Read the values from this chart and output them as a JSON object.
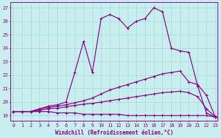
{
  "xlabel": "Windchill (Refroidissement éolien,°C)",
  "bg_color": "#c8eef0",
  "line_color": "#880088",
  "grid_color": "#aadddd",
  "x_ticks": [
    0,
    1,
    2,
    3,
    4,
    5,
    6,
    7,
    8,
    9,
    10,
    11,
    12,
    13,
    14,
    15,
    16,
    17,
    18,
    19,
    20,
    21,
    22,
    23
  ],
  "y_ticks": [
    19,
    20,
    21,
    22,
    23,
    24,
    25,
    26,
    27
  ],
  "ylim": [
    18.6,
    27.4
  ],
  "xlim": [
    -0.3,
    23.3
  ],
  "curve_flat_x": [
    0,
    1,
    2,
    3,
    4,
    5,
    6,
    7,
    8,
    9,
    10,
    11,
    12,
    13,
    14,
    15,
    16,
    17,
    18,
    19,
    20,
    21,
    22,
    23
  ],
  "curve_flat_y": [
    19.3,
    19.3,
    19.3,
    19.3,
    19.3,
    19.2,
    19.2,
    19.2,
    19.1,
    19.1,
    19.1,
    19.1,
    19.1,
    19.0,
    19.0,
    19.0,
    19.0,
    19.0,
    19.0,
    19.0,
    19.0,
    19.0,
    19.0,
    18.9
  ],
  "curve_slow_x": [
    0,
    1,
    2,
    3,
    4,
    5,
    6,
    7,
    8,
    9,
    10,
    11,
    12,
    13,
    14,
    15,
    16,
    17,
    18,
    19,
    20,
    21,
    22,
    23
  ],
  "curve_slow_y": [
    19.3,
    19.3,
    19.3,
    19.4,
    19.5,
    19.55,
    19.65,
    19.75,
    19.85,
    19.9,
    20.0,
    20.1,
    20.2,
    20.3,
    20.4,
    20.5,
    20.6,
    20.7,
    20.75,
    20.8,
    20.7,
    20.4,
    19.5,
    18.9
  ],
  "curve_mid_x": [
    0,
    1,
    2,
    3,
    4,
    5,
    6,
    7,
    8,
    9,
    10,
    11,
    12,
    13,
    14,
    15,
    16,
    17,
    18,
    19,
    20,
    21,
    22,
    23
  ],
  "curve_mid_y": [
    19.3,
    19.3,
    19.3,
    19.5,
    19.6,
    19.7,
    19.8,
    19.95,
    20.1,
    20.3,
    20.6,
    20.9,
    21.1,
    21.3,
    21.5,
    21.7,
    21.9,
    22.1,
    22.2,
    22.3,
    21.5,
    21.3,
    20.5,
    18.9
  ],
  "curve_top_x": [
    0,
    1,
    2,
    3,
    4,
    5,
    6,
    7,
    8,
    9,
    10,
    11,
    12,
    13,
    14,
    15,
    16,
    17,
    18,
    19,
    20,
    21,
    22,
    23
  ],
  "curve_top_y": [
    19.3,
    19.3,
    19.3,
    19.5,
    19.7,
    19.8,
    20.0,
    22.2,
    24.5,
    22.2,
    26.2,
    26.5,
    26.2,
    25.5,
    26.0,
    26.2,
    27.0,
    26.7,
    24.0,
    23.8,
    23.7,
    21.2,
    19.2,
    18.85
  ]
}
